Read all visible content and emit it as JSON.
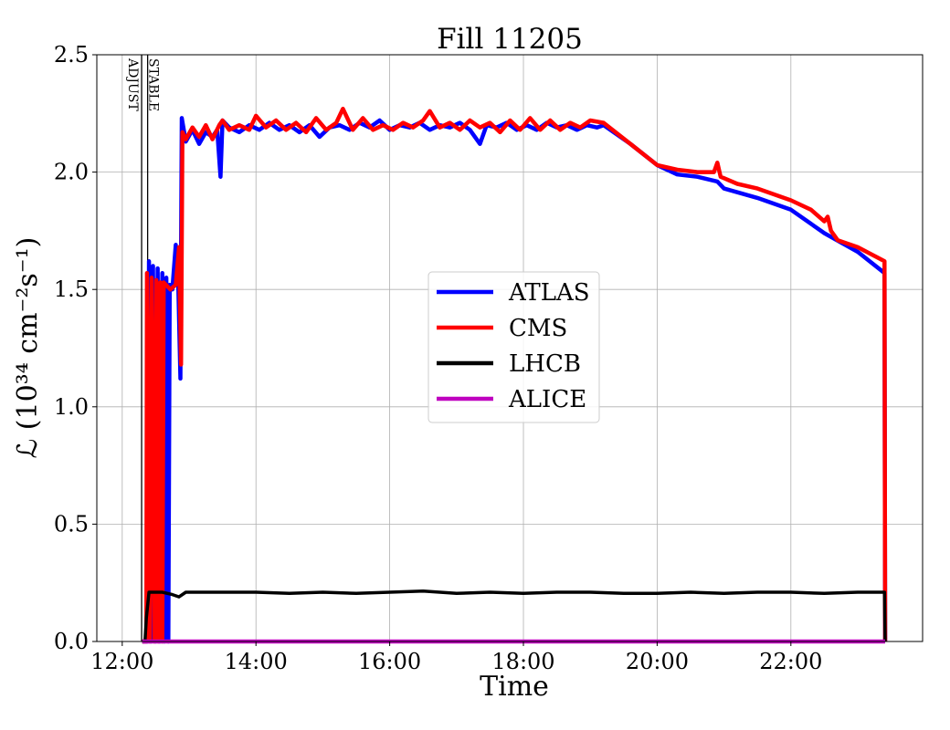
{
  "chart_data": {
    "type": "line",
    "title": "Fill 11205",
    "xlabel": "Time",
    "ylabel": "ℒ (10³⁴ cm⁻²s⁻¹)",
    "x_unit": "hours of day",
    "xlim": [
      11.62,
      23.97
    ],
    "ylim": [
      0,
      2.5
    ],
    "grid": true,
    "legend_position": "center",
    "x_ticks": [
      {
        "v": 12,
        "label": "12:00"
      },
      {
        "v": 14,
        "label": "14:00"
      },
      {
        "v": 16,
        "label": "16:00"
      },
      {
        "v": 18,
        "label": "18:00"
      },
      {
        "v": 20,
        "label": "20:00"
      },
      {
        "v": 22,
        "label": "22:00"
      }
    ],
    "y_ticks": [
      {
        "v": 0,
        "label": "0.0"
      },
      {
        "v": 0.5,
        "label": "0.5"
      },
      {
        "v": 1.0,
        "label": "1.0"
      },
      {
        "v": 1.5,
        "label": "1.5"
      },
      {
        "v": 2.0,
        "label": "2.0"
      },
      {
        "v": 2.5,
        "label": "2.5"
      }
    ],
    "annotations": [
      {
        "x": 12.29,
        "label": "ADJUST"
      },
      {
        "x": 12.38,
        "label": "STABLE"
      }
    ],
    "series": [
      {
        "name": "ATLAS",
        "color": "#0000ff",
        "points": [
          [
            12.3,
            0
          ],
          [
            12.38,
            0
          ],
          [
            12.4,
            1.62
          ],
          [
            12.43,
            0
          ],
          [
            12.46,
            1.6
          ],
          [
            12.5,
            0
          ],
          [
            12.53,
            1.59
          ],
          [
            12.56,
            0
          ],
          [
            12.6,
            1.57
          ],
          [
            12.63,
            0
          ],
          [
            12.66,
            1.55
          ],
          [
            12.69,
            0
          ],
          [
            12.71,
            1.52
          ],
          [
            12.75,
            1.5
          ],
          [
            12.8,
            1.69
          ],
          [
            12.84,
            1.5
          ],
          [
            12.87,
            1.12
          ],
          [
            12.89,
            2.23
          ],
          [
            12.95,
            2.13
          ],
          [
            13.05,
            2.18
          ],
          [
            13.15,
            2.12
          ],
          [
            13.25,
            2.17
          ],
          [
            13.35,
            2.15
          ],
          [
            13.42,
            2.18
          ],
          [
            13.47,
            1.98
          ],
          [
            13.5,
            2.22
          ],
          [
            13.6,
            2.19
          ],
          [
            13.75,
            2.17
          ],
          [
            13.9,
            2.2
          ],
          [
            14.05,
            2.18
          ],
          [
            14.2,
            2.21
          ],
          [
            14.35,
            2.18
          ],
          [
            14.5,
            2.2
          ],
          [
            14.65,
            2.17
          ],
          [
            14.8,
            2.2
          ],
          [
            14.95,
            2.15
          ],
          [
            15.1,
            2.19
          ],
          [
            15.25,
            2.2
          ],
          [
            15.4,
            2.18
          ],
          [
            15.55,
            2.21
          ],
          [
            15.7,
            2.19
          ],
          [
            15.85,
            2.22
          ],
          [
            16.0,
            2.18
          ],
          [
            16.15,
            2.2
          ],
          [
            16.3,
            2.19
          ],
          [
            16.45,
            2.21
          ],
          [
            16.6,
            2.18
          ],
          [
            16.75,
            2.2
          ],
          [
            16.9,
            2.19
          ],
          [
            17.05,
            2.21
          ],
          [
            17.2,
            2.18
          ],
          [
            17.35,
            2.12
          ],
          [
            17.45,
            2.2
          ],
          [
            17.6,
            2.19
          ],
          [
            17.75,
            2.21
          ],
          [
            17.9,
            2.18
          ],
          [
            18.05,
            2.2
          ],
          [
            18.2,
            2.18
          ],
          [
            18.35,
            2.21
          ],
          [
            18.5,
            2.19
          ],
          [
            18.65,
            2.2
          ],
          [
            18.8,
            2.18
          ],
          [
            18.95,
            2.2
          ],
          [
            19.1,
            2.19
          ],
          [
            19.2,
            2.2
          ],
          [
            19.6,
            2.12
          ],
          [
            20.0,
            2.03
          ],
          [
            20.3,
            1.99
          ],
          [
            20.6,
            1.98
          ],
          [
            20.9,
            1.96
          ],
          [
            21.0,
            1.93
          ],
          [
            21.5,
            1.89
          ],
          [
            22.0,
            1.84
          ],
          [
            22.5,
            1.74
          ],
          [
            23.0,
            1.66
          ],
          [
            23.4,
            1.57
          ],
          [
            23.41,
            0
          ]
        ]
      },
      {
        "name": "CMS",
        "color": "#ff0000",
        "points": [
          [
            12.3,
            0
          ],
          [
            12.36,
            0
          ],
          [
            12.37,
            1.57
          ],
          [
            12.41,
            0
          ],
          [
            12.44,
            1.55
          ],
          [
            12.48,
            0
          ],
          [
            12.51,
            1.54
          ],
          [
            12.54,
            0
          ],
          [
            12.57,
            1.53
          ],
          [
            12.6,
            0
          ],
          [
            12.62,
            1.53
          ],
          [
            12.72,
            1.5
          ],
          [
            12.8,
            1.52
          ],
          [
            12.85,
            1.68
          ],
          [
            12.88,
            1.18
          ],
          [
            12.9,
            2.17
          ],
          [
            12.95,
            2.14
          ],
          [
            13.05,
            2.19
          ],
          [
            13.15,
            2.15
          ],
          [
            13.25,
            2.2
          ],
          [
            13.35,
            2.14
          ],
          [
            13.45,
            2.2
          ],
          [
            13.5,
            2.22
          ],
          [
            13.6,
            2.18
          ],
          [
            13.75,
            2.2
          ],
          [
            13.9,
            2.18
          ],
          [
            14.0,
            2.24
          ],
          [
            14.15,
            2.19
          ],
          [
            14.3,
            2.22
          ],
          [
            14.45,
            2.18
          ],
          [
            14.6,
            2.21
          ],
          [
            14.75,
            2.17
          ],
          [
            14.9,
            2.23
          ],
          [
            15.05,
            2.18
          ],
          [
            15.2,
            2.21
          ],
          [
            15.3,
            2.27
          ],
          [
            15.45,
            2.18
          ],
          [
            15.6,
            2.23
          ],
          [
            15.75,
            2.18
          ],
          [
            15.9,
            2.2
          ],
          [
            16.05,
            2.18
          ],
          [
            16.2,
            2.21
          ],
          [
            16.35,
            2.19
          ],
          [
            16.5,
            2.22
          ],
          [
            16.6,
            2.26
          ],
          [
            16.75,
            2.19
          ],
          [
            16.9,
            2.21
          ],
          [
            17.05,
            2.18
          ],
          [
            17.2,
            2.22
          ],
          [
            17.35,
            2.19
          ],
          [
            17.5,
            2.21
          ],
          [
            17.65,
            2.17
          ],
          [
            17.8,
            2.22
          ],
          [
            17.95,
            2.18
          ],
          [
            18.1,
            2.23
          ],
          [
            18.25,
            2.18
          ],
          [
            18.4,
            2.22
          ],
          [
            18.55,
            2.18
          ],
          [
            18.7,
            2.21
          ],
          [
            18.85,
            2.19
          ],
          [
            19.0,
            2.22
          ],
          [
            19.2,
            2.21
          ],
          [
            19.6,
            2.12
          ],
          [
            20.0,
            2.03
          ],
          [
            20.3,
            2.01
          ],
          [
            20.6,
            2.0
          ],
          [
            20.85,
            2.0
          ],
          [
            20.9,
            2.04
          ],
          [
            20.95,
            1.98
          ],
          [
            21.2,
            1.95
          ],
          [
            21.5,
            1.93
          ],
          [
            22.0,
            1.88
          ],
          [
            22.3,
            1.84
          ],
          [
            22.5,
            1.79
          ],
          [
            22.55,
            1.81
          ],
          [
            22.6,
            1.75
          ],
          [
            22.7,
            1.71
          ],
          [
            23.0,
            1.68
          ],
          [
            23.4,
            1.62
          ],
          [
            23.41,
            0
          ]
        ]
      },
      {
        "name": "LHCB",
        "color": "#000000",
        "points": [
          [
            12.3,
            0
          ],
          [
            12.34,
            0
          ],
          [
            12.36,
            0.1
          ],
          [
            12.4,
            0.21
          ],
          [
            12.6,
            0.21
          ],
          [
            12.75,
            0.2
          ],
          [
            12.85,
            0.19
          ],
          [
            12.95,
            0.21
          ],
          [
            13.5,
            0.21
          ],
          [
            14.0,
            0.21
          ],
          [
            14.5,
            0.205
          ],
          [
            15.0,
            0.21
          ],
          [
            15.5,
            0.205
          ],
          [
            16.0,
            0.21
          ],
          [
            16.5,
            0.215
          ],
          [
            17.0,
            0.205
          ],
          [
            17.5,
            0.21
          ],
          [
            18.0,
            0.205
          ],
          [
            18.5,
            0.21
          ],
          [
            19.0,
            0.21
          ],
          [
            19.5,
            0.205
          ],
          [
            20.0,
            0.205
          ],
          [
            20.5,
            0.21
          ],
          [
            21.0,
            0.205
          ],
          [
            21.5,
            0.21
          ],
          [
            22.0,
            0.21
          ],
          [
            22.5,
            0.205
          ],
          [
            23.0,
            0.21
          ],
          [
            23.4,
            0.21
          ],
          [
            23.41,
            0
          ]
        ]
      },
      {
        "name": "ALICE",
        "color": "#bf00bf",
        "points": [
          [
            12.3,
            0
          ],
          [
            23.41,
            0
          ]
        ]
      }
    ]
  }
}
